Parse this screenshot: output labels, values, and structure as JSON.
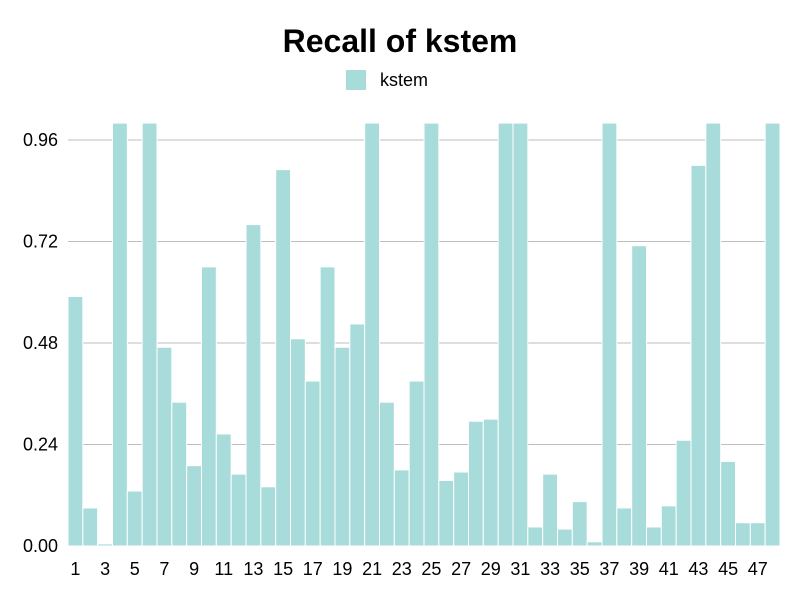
{
  "chart_data": {
    "type": "bar",
    "title": "Recall of kstem",
    "xlabel": "",
    "ylabel": "",
    "grid": true,
    "legend_position": "top-center",
    "ylim": [
      0,
      0.96
    ],
    "y_ticks": [
      "0.00",
      "0.24",
      "0.48",
      "0.72",
      "0.96"
    ],
    "x_tick_labels": [
      "1",
      "3",
      "5",
      "7",
      "9",
      "11",
      "13",
      "15",
      "17",
      "19",
      "21",
      "23",
      "25",
      "27",
      "29",
      "31",
      "33",
      "35",
      "37",
      "39",
      "41",
      "43",
      "45",
      "47"
    ],
    "categories": [
      1,
      2,
      3,
      4,
      5,
      6,
      7,
      8,
      9,
      10,
      11,
      12,
      13,
      14,
      15,
      16,
      17,
      18,
      19,
      20,
      21,
      22,
      23,
      24,
      25,
      26,
      27,
      28,
      29,
      30,
      31,
      32,
      33,
      34,
      35,
      36,
      37,
      38,
      39,
      40,
      41,
      42,
      43,
      44,
      45,
      46,
      47,
      48
    ],
    "series": [
      {
        "name": "kstem",
        "color": "#a8dcdb",
        "values": [
          0.59,
          0.09,
          0.005,
          1.0,
          0.13,
          1.0,
          0.47,
          0.34,
          0.19,
          0.66,
          0.265,
          0.17,
          0.76,
          0.14,
          0.89,
          0.49,
          0.39,
          0.66,
          0.47,
          0.525,
          1.0,
          0.34,
          0.18,
          0.39,
          1.0,
          0.155,
          0.175,
          0.295,
          0.3,
          1.0,
          1.0,
          0.045,
          0.17,
          0.04,
          0.105,
          0.01,
          1.0,
          0.09,
          0.71,
          0.045,
          0.095,
          0.25,
          0.9,
          1.0,
          0.2,
          0.055,
          0.055,
          1.0
        ]
      }
    ]
  }
}
